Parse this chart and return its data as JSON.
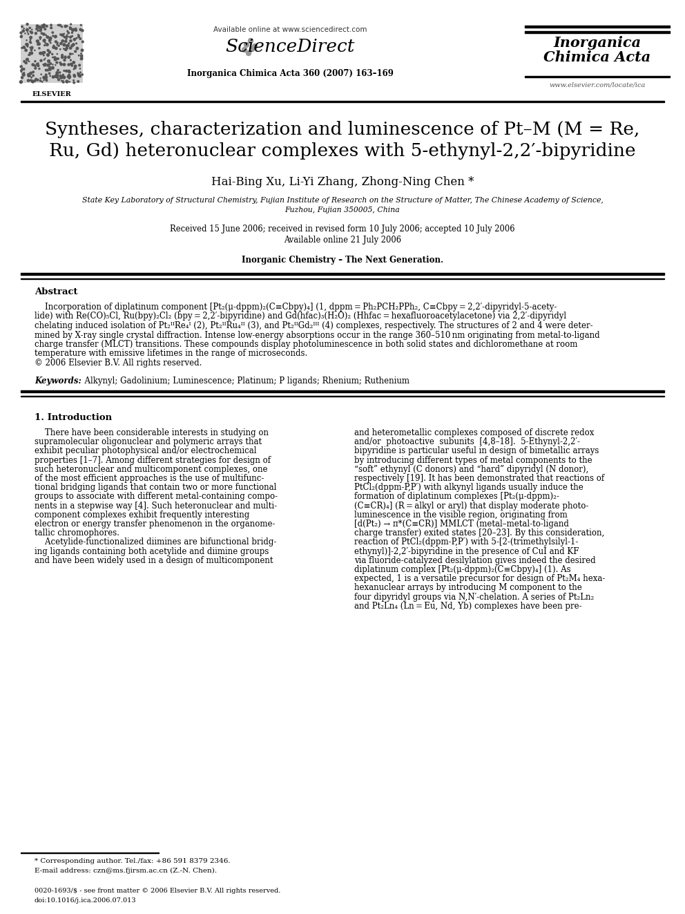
{
  "bg_color": "#ffffff",
  "title_line1": "Syntheses, characterization and luminescence of Pt–M (M = Re,",
  "title_line2": "Ru, Gd) heteronuclear complexes with 5-ethynyl-2,2′-bipyridine",
  "authors": "Hai-Bing Xu, Li-Yi Zhang, Zhong-Ning Chen *",
  "affiliation1": "State Key Laboratory of Structural Chemistry, Fujian Institute of Research on the Structure of Matter, The Chinese Academy of Science,",
  "affiliation2": "Fuzhou, Fujian 350005, China",
  "received": "Received 15 June 2006; received in revised form 10 July 2006; accepted 10 July 2006",
  "available": "Available online 21 July 2006",
  "journal_special": "Inorganic Chemistry – The Next Generation.",
  "header_available": "Available online at www.sciencedirect.com",
  "header_journal": "Inorganica Chimica Acta 360 (2007) 163–169",
  "journal_name_right1": "Inorganica",
  "journal_name_right2": "Chimica Acta",
  "website_right": "www.elsevier.com/locate/ica",
  "abstract_title": "Abstract",
  "keywords_label": "Keywords:",
  "keywords_text": "  Alkynyl; Gadolinium; Luminescence; Platinum; P ligands; Rhenium; Ruthenium",
  "section1_title": "1. Introduction",
  "footnote1": "* Corresponding author. Tel./fax: +86 591 8379 2346.",
  "footnote2": "E-mail address: czn@ms.fjirsm.ac.cn (Z.-N. Chen).",
  "footer1": "0020-1693/$ - see front matter © 2006 Elsevier B.V. All rights reserved.",
  "footer2": "doi:10.1016/j.ica.2006.07.013"
}
